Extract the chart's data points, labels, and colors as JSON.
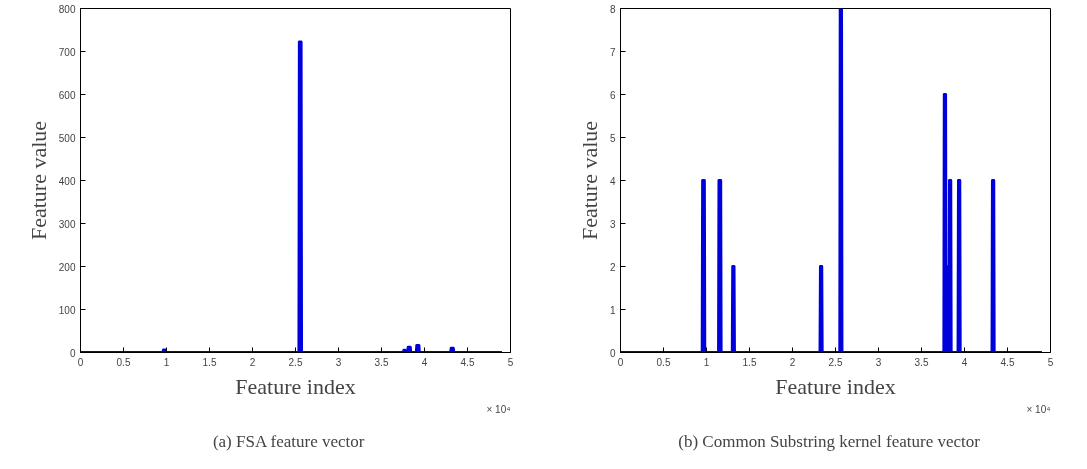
{
  "chart_data": [
    {
      "type": "line",
      "xlabel": "Feature index",
      "ylabel": "Feature value",
      "x": [
        0,
        0.96,
        0.965,
        0.985,
        0.99,
        2.54,
        2.545,
        2.565,
        2.57,
        3.755,
        3.76,
        3.775,
        3.78,
        3.805,
        3.81,
        3.835,
        3.84,
        3.905,
        3.91,
        3.935,
        3.94,
        4.305,
        4.31,
        4.335,
        4.34,
        4.9
      ],
      "series": [
        {
          "color": "#0000dd",
          "values": [
            0,
            0,
            6,
            6,
            0,
            0,
            722,
            722,
            0,
            0,
            5,
            5,
            0,
            0,
            12,
            12,
            0,
            0,
            16,
            16,
            0,
            0,
            10,
            10,
            0,
            0
          ]
        }
      ],
      "xlim": [
        0,
        5
      ],
      "xticks": [
        0,
        0.5,
        1,
        1.5,
        2,
        2.5,
        3,
        3.5,
        4,
        4.5,
        5
      ],
      "ylim": [
        0,
        800
      ],
      "yticks": [
        0,
        100,
        200,
        300,
        400,
        500,
        600,
        700,
        800
      ],
      "grid": false,
      "annotations": [
        "× 10⁴",
        "(a)    FSA feature vector"
      ]
    },
    {
      "type": "line",
      "xlabel": "Feature index",
      "ylabel": "Feature value",
      "x": [
        0,
        0.95,
        0.955,
        0.975,
        0.98,
        1.14,
        1.145,
        1.165,
        1.17,
        1.3,
        1.305,
        1.32,
        1.325,
        2.32,
        2.325,
        2.34,
        2.345,
        2.55,
        2.555,
        2.57,
        2.575,
        3.76,
        3.765,
        3.78,
        3.785,
        3.805,
        3.81,
        3.815,
        3.82,
        3.825,
        3.84,
        3.845,
        3.925,
        3.93,
        3.945,
        3.95,
        4.32,
        4.325,
        4.34,
        4.345,
        4.9
      ],
      "series": [
        {
          "color": "#0000dd",
          "values": [
            0,
            0,
            4,
            4,
            0,
            0,
            4,
            4,
            0,
            0,
            2,
            2,
            0,
            0,
            2,
            2,
            0,
            0,
            8,
            8,
            0,
            0,
            6,
            6,
            0,
            0,
            2,
            2,
            0,
            4,
            4,
            0,
            0,
            4,
            4,
            0,
            0,
            4,
            4,
            0,
            0
          ]
        }
      ],
      "xlim": [
        0,
        5
      ],
      "xticks": [
        0,
        0.5,
        1,
        1.5,
        2,
        2.5,
        3,
        3.5,
        4,
        4.5,
        5
      ],
      "ylim": [
        0,
        8
      ],
      "yticks": [
        0,
        1,
        2,
        3,
        4,
        5,
        6,
        7,
        8
      ],
      "grid": false,
      "annotations": [
        "× 10⁴",
        "(b)    Common Substring kernel feature vector"
      ]
    }
  ]
}
